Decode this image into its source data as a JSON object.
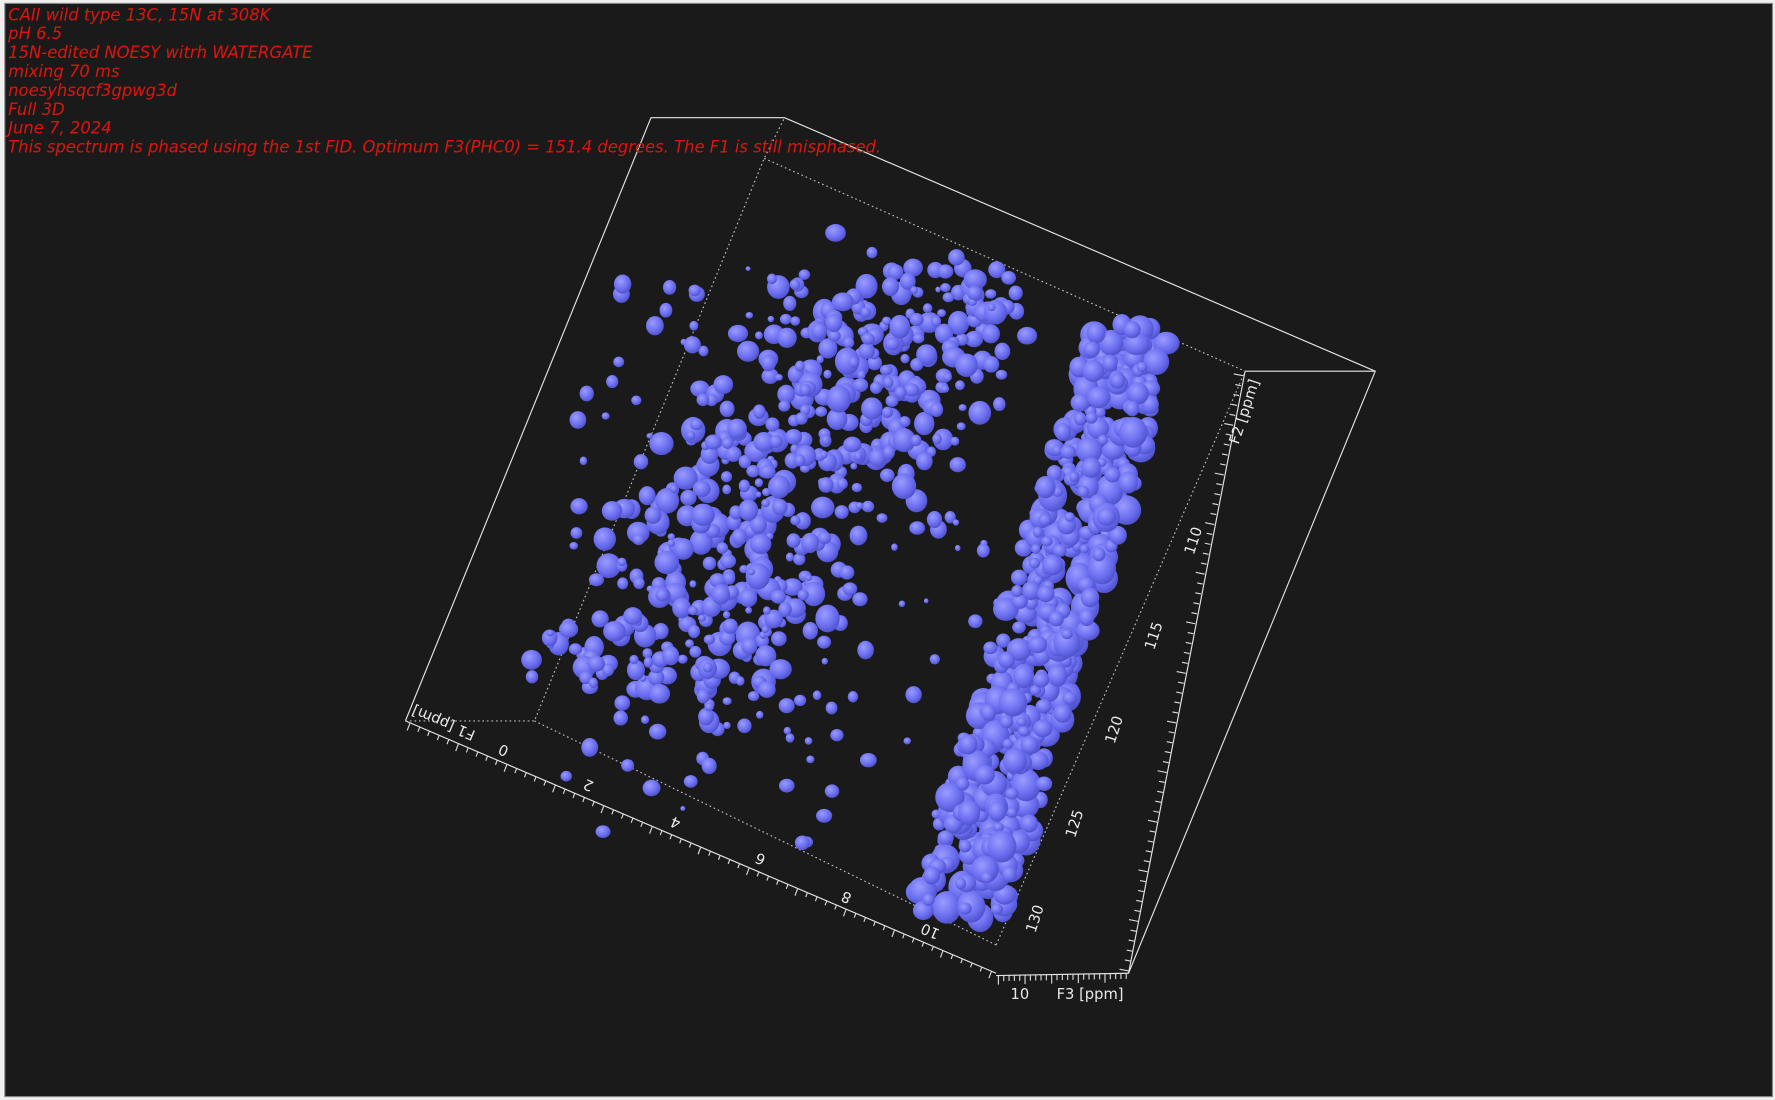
{
  "header": {
    "lines": [
      "CAII  wild type 13C, 15N at 308K",
      "pH 6.5",
      "15N-edited NOESY witrh WATERGATE",
      "mixing 70 ms",
      "noesyhsqcf3gpwg3d",
      "Full 3D",
      "June 7, 2024",
      "This spectrum is phased using the 1st FID. Optimum F3(PHC0) = 151.4 degrees. The F1 is still misphased."
    ]
  },
  "axes": {
    "f1": {
      "label": "F1 [ppm]",
      "ticks": [
        "0",
        "2",
        "4",
        "6",
        "8",
        "10"
      ]
    },
    "f2": {
      "label": "F2 [ppm]",
      "ticks": [
        "110",
        "115",
        "120",
        "125",
        "130"
      ]
    },
    "f3": {
      "label": "F3 [ppm]",
      "ticks": [
        "10"
      ]
    }
  }
}
